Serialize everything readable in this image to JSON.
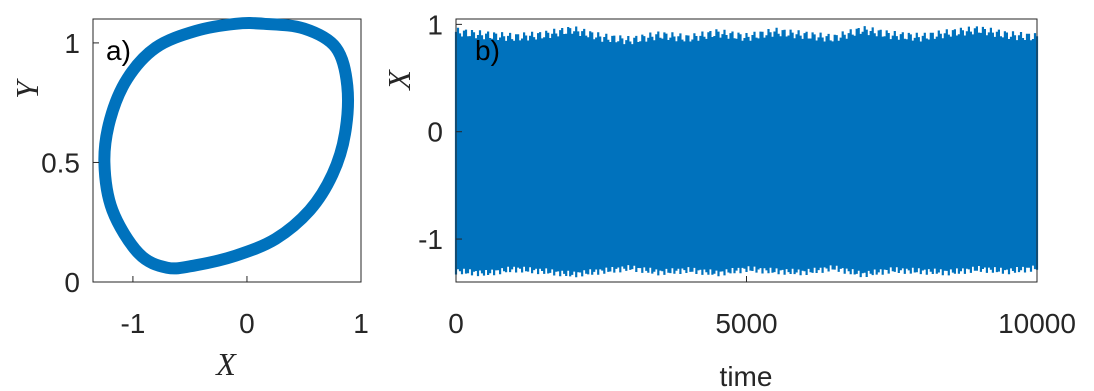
{
  "chart_data": [
    {
      "type": "line",
      "panel_label": "a)",
      "xlabel": "X",
      "ylabel": "Y",
      "xlim": [
        -1.35,
        1.0
      ],
      "ylim": [
        0,
        1.1
      ],
      "xticks": [
        -1,
        0,
        1
      ],
      "xtick_labels": [
        "-1",
        "0",
        "1"
      ],
      "yticks": [
        0,
        0.5,
        1
      ],
      "ytick_labels": [
        "0",
        "0.5",
        "1"
      ],
      "color": "#0072BD",
      "series": [
        {
          "x": [
            0.15,
            0.5,
            0.78,
            0.88,
            0.86,
            0.75,
            0.55,
            0.25,
            -0.1,
            -0.45,
            -0.7,
            -0.95,
            -1.18,
            -1.25,
            -1.2,
            -1.05,
            -0.8,
            -0.45,
            -0.1,
            0.15
          ],
          "y": [
            1.08,
            1.06,
            0.98,
            0.82,
            0.62,
            0.45,
            0.3,
            0.18,
            0.11,
            0.07,
            0.06,
            0.12,
            0.3,
            0.5,
            0.68,
            0.85,
            0.98,
            1.05,
            1.08,
            1.08
          ]
        }
      ]
    },
    {
      "type": "line",
      "panel_label": "b)",
      "xlabel": "time",
      "ylabel": "X",
      "xlim": [
        0,
        10000
      ],
      "ylim": [
        -1.4,
        1.05
      ],
      "xticks": [
        0,
        5000,
        10000
      ],
      "xtick_labels": [
        "0",
        "5000",
        "10000"
      ],
      "yticks": [
        -1,
        0,
        1
      ],
      "ytick_labels": [
        "-1",
        "0",
        "1"
      ],
      "color": "#0072BD",
      "upper_envelope": {
        "t": [
          0,
          500,
          1000,
          1500,
          2000,
          2500,
          3000,
          3500,
          4000,
          4500,
          5000,
          5500,
          6000,
          6500,
          7000,
          7500,
          8000,
          8500,
          9000,
          9500,
          10000
        ],
        "x": [
          0.93,
          0.9,
          0.88,
          0.9,
          0.95,
          0.88,
          0.85,
          0.9,
          0.87,
          0.92,
          0.88,
          0.93,
          0.9,
          0.87,
          0.95,
          0.9,
          0.88,
          0.92,
          0.95,
          0.9,
          0.88
        ]
      },
      "lower_envelope": {
        "t": [
          0,
          500,
          1000,
          1500,
          2000,
          2500,
          3000,
          3500,
          4000,
          4500,
          5000,
          5500,
          6000,
          6500,
          7000,
          7500,
          8000,
          8500,
          9000,
          9500,
          10000
        ],
        "x": [
          -1.3,
          -1.32,
          -1.28,
          -1.3,
          -1.33,
          -1.3,
          -1.27,
          -1.31,
          -1.29,
          -1.32,
          -1.28,
          -1.3,
          -1.31,
          -1.27,
          -1.33,
          -1.29,
          -1.3,
          -1.31,
          -1.28,
          -1.3,
          -1.27
        ]
      }
    }
  ]
}
